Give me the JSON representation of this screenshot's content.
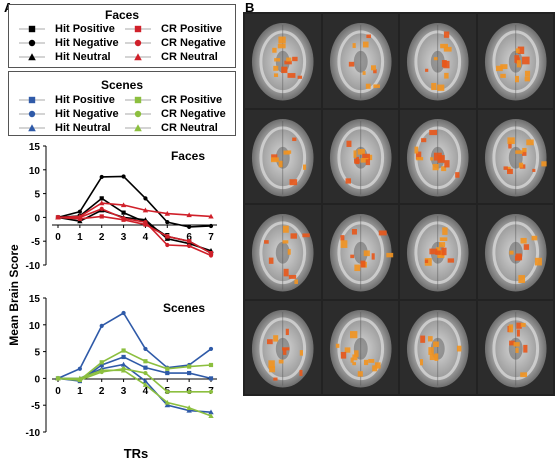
{
  "panel_a_label": "A",
  "panel_b_label": "B",
  "legend_faces": {
    "title": "Faces",
    "items": [
      {
        "label": "Hit Positive",
        "color": "#000000",
        "marker": "square"
      },
      {
        "label": "CR Positive",
        "color": "#d0202a",
        "marker": "square"
      },
      {
        "label": "Hit Negative",
        "color": "#000000",
        "marker": "circle"
      },
      {
        "label": "CR Negative",
        "color": "#d0202a",
        "marker": "circle"
      },
      {
        "label": "Hit Neutral",
        "color": "#000000",
        "marker": "triangle"
      },
      {
        "label": "CR Neutral",
        "color": "#d0202a",
        "marker": "triangle"
      }
    ]
  },
  "legend_scenes": {
    "title": "Scenes",
    "items": [
      {
        "label": "Hit Positive",
        "color": "#2f5aa8",
        "marker": "square"
      },
      {
        "label": "CR Positive",
        "color": "#8cbf3f",
        "marker": "square"
      },
      {
        "label": "Hit Negative",
        "color": "#2f5aa8",
        "marker": "circle"
      },
      {
        "label": "CR Negative",
        "color": "#8cbf3f",
        "marker": "circle"
      },
      {
        "label": "Hit Neutral",
        "color": "#2f5aa8",
        "marker": "triangle"
      },
      {
        "label": "CR Neutral",
        "color": "#8cbf3f",
        "marker": "triangle"
      }
    ]
  },
  "shared_ylabel": "Mean Brain Score",
  "shared_xlabel": "TRs",
  "chart_data": [
    {
      "type": "line",
      "title": "Faces",
      "x": [
        0,
        1,
        2,
        3,
        4,
        5,
        6,
        7
      ],
      "ylim": [
        -10,
        15
      ],
      "yticks": [
        -10,
        -5,
        0,
        5,
        10,
        15
      ],
      "series": [
        {
          "name": "Hit Positive",
          "color": "#000000",
          "values": [
            0,
            0.3,
            4,
            1,
            -1,
            -4,
            -5,
            -7.5
          ]
        },
        {
          "name": "Hit Negative",
          "color": "#000000",
          "values": [
            0,
            1.2,
            8.5,
            8.6,
            4,
            -1,
            -2,
            -1.8
          ]
        },
        {
          "name": "Hit Neutral",
          "color": "#000000",
          "values": [
            0,
            -0.8,
            1.5,
            0,
            -0.5,
            -4.5,
            -5.5,
            -7
          ]
        },
        {
          "name": "CR Positive",
          "color": "#d0202a",
          "values": [
            0,
            -0.3,
            0.2,
            -0.5,
            -1.5,
            -4,
            -5,
            -7.5
          ]
        },
        {
          "name": "CR Negative",
          "color": "#d0202a",
          "values": [
            0,
            0,
            1.8,
            -0.2,
            -1,
            -5.8,
            -6,
            -8
          ]
        },
        {
          "name": "CR Neutral",
          "color": "#d0202a",
          "values": [
            0,
            0.2,
            3,
            2.6,
            1.5,
            0.8,
            0.5,
            0.2
          ]
        }
      ]
    },
    {
      "type": "line",
      "title": "Scenes",
      "x": [
        0,
        1,
        2,
        3,
        4,
        5,
        6,
        7
      ],
      "ylim": [
        -10,
        15
      ],
      "yticks": [
        -10,
        -5,
        0,
        5,
        10,
        15
      ],
      "series": [
        {
          "name": "Hit Positive",
          "color": "#2f5aa8",
          "values": [
            0,
            -0.5,
            2.5,
            4,
            2,
            1,
            1,
            0
          ]
        },
        {
          "name": "Hit Negative",
          "color": "#2f5aa8",
          "values": [
            0,
            1.8,
            9.8,
            12.2,
            5.5,
            2,
            2.5,
            5.5
          ]
        },
        {
          "name": "Hit Neutral",
          "color": "#2f5aa8",
          "values": [
            0,
            0,
            1.8,
            2.6,
            -0.5,
            -5,
            -6,
            -6.3
          ]
        },
        {
          "name": "CR Positive",
          "color": "#8cbf3f",
          "values": [
            0,
            -0.3,
            3,
            5.2,
            3.2,
            1.8,
            2.2,
            2.5
          ]
        },
        {
          "name": "CR Negative",
          "color": "#8cbf3f",
          "values": [
            0,
            -0.3,
            1.2,
            1.8,
            1,
            -2.5,
            -2.5,
            -2.5
          ]
        },
        {
          "name": "CR Neutral",
          "color": "#8cbf3f",
          "values": [
            0,
            0,
            1.5,
            1.5,
            -1.2,
            -4.5,
            -5.5,
            -7
          ]
        }
      ]
    }
  ]
}
